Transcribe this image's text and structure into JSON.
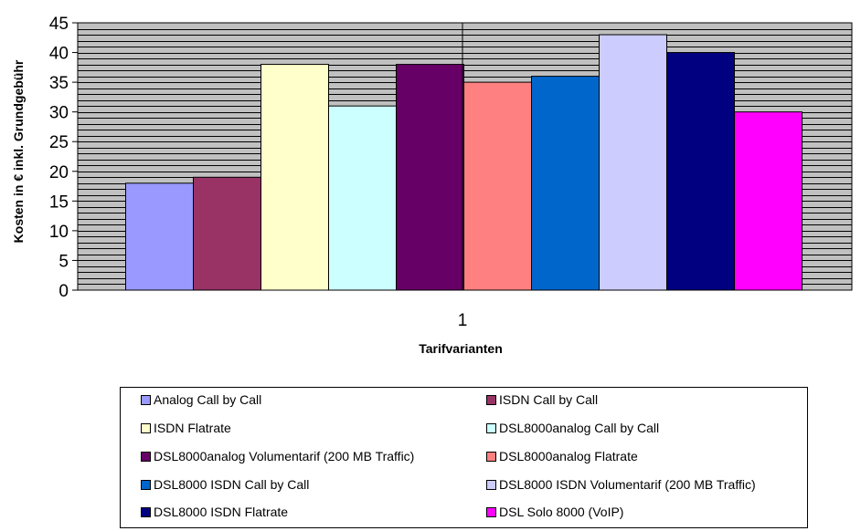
{
  "chart_data": {
    "type": "bar",
    "categories": [
      "1"
    ],
    "ylabel": "Kosten in € inkl. Grundgebühr",
    "xlabel": "Tarifvarianten",
    "ylim": [
      0,
      45
    ],
    "yticks": [
      0,
      5,
      10,
      15,
      20,
      25,
      30,
      35,
      40,
      45
    ],
    "grid": true,
    "legend_position": "bottom",
    "plot_background": "#c0c0c0",
    "series": [
      {
        "name": "Analog Call by Call",
        "values": [
          18
        ],
        "color": "#9999ff"
      },
      {
        "name": "ISDN Call by Call",
        "values": [
          19
        ],
        "color": "#993366"
      },
      {
        "name": "ISDN Flatrate",
        "values": [
          38
        ],
        "color": "#ffffcc"
      },
      {
        "name": "DSL8000analog Call by Call",
        "values": [
          31
        ],
        "color": "#ccffff"
      },
      {
        "name": "DSL8000analog Volumentarif (200 MB Traffic)",
        "values": [
          38
        ],
        "color": "#660066"
      },
      {
        "name": "DSL8000analog Flatrate",
        "values": [
          35
        ],
        "color": "#ff8080"
      },
      {
        "name": "DSL8000 ISDN Call by Call",
        "values": [
          36
        ],
        "color": "#0066cc"
      },
      {
        "name": "DSL8000 ISDN Volumentarif (200 MB Traffic)",
        "values": [
          43
        ],
        "color": "#ccccff"
      },
      {
        "name": "DSL8000 ISDN Flatrate",
        "values": [
          40
        ],
        "color": "#000080"
      },
      {
        "name": "DSL Solo 8000 (VoIP)",
        "values": [
          30
        ],
        "color": "#ff00ff"
      }
    ]
  }
}
